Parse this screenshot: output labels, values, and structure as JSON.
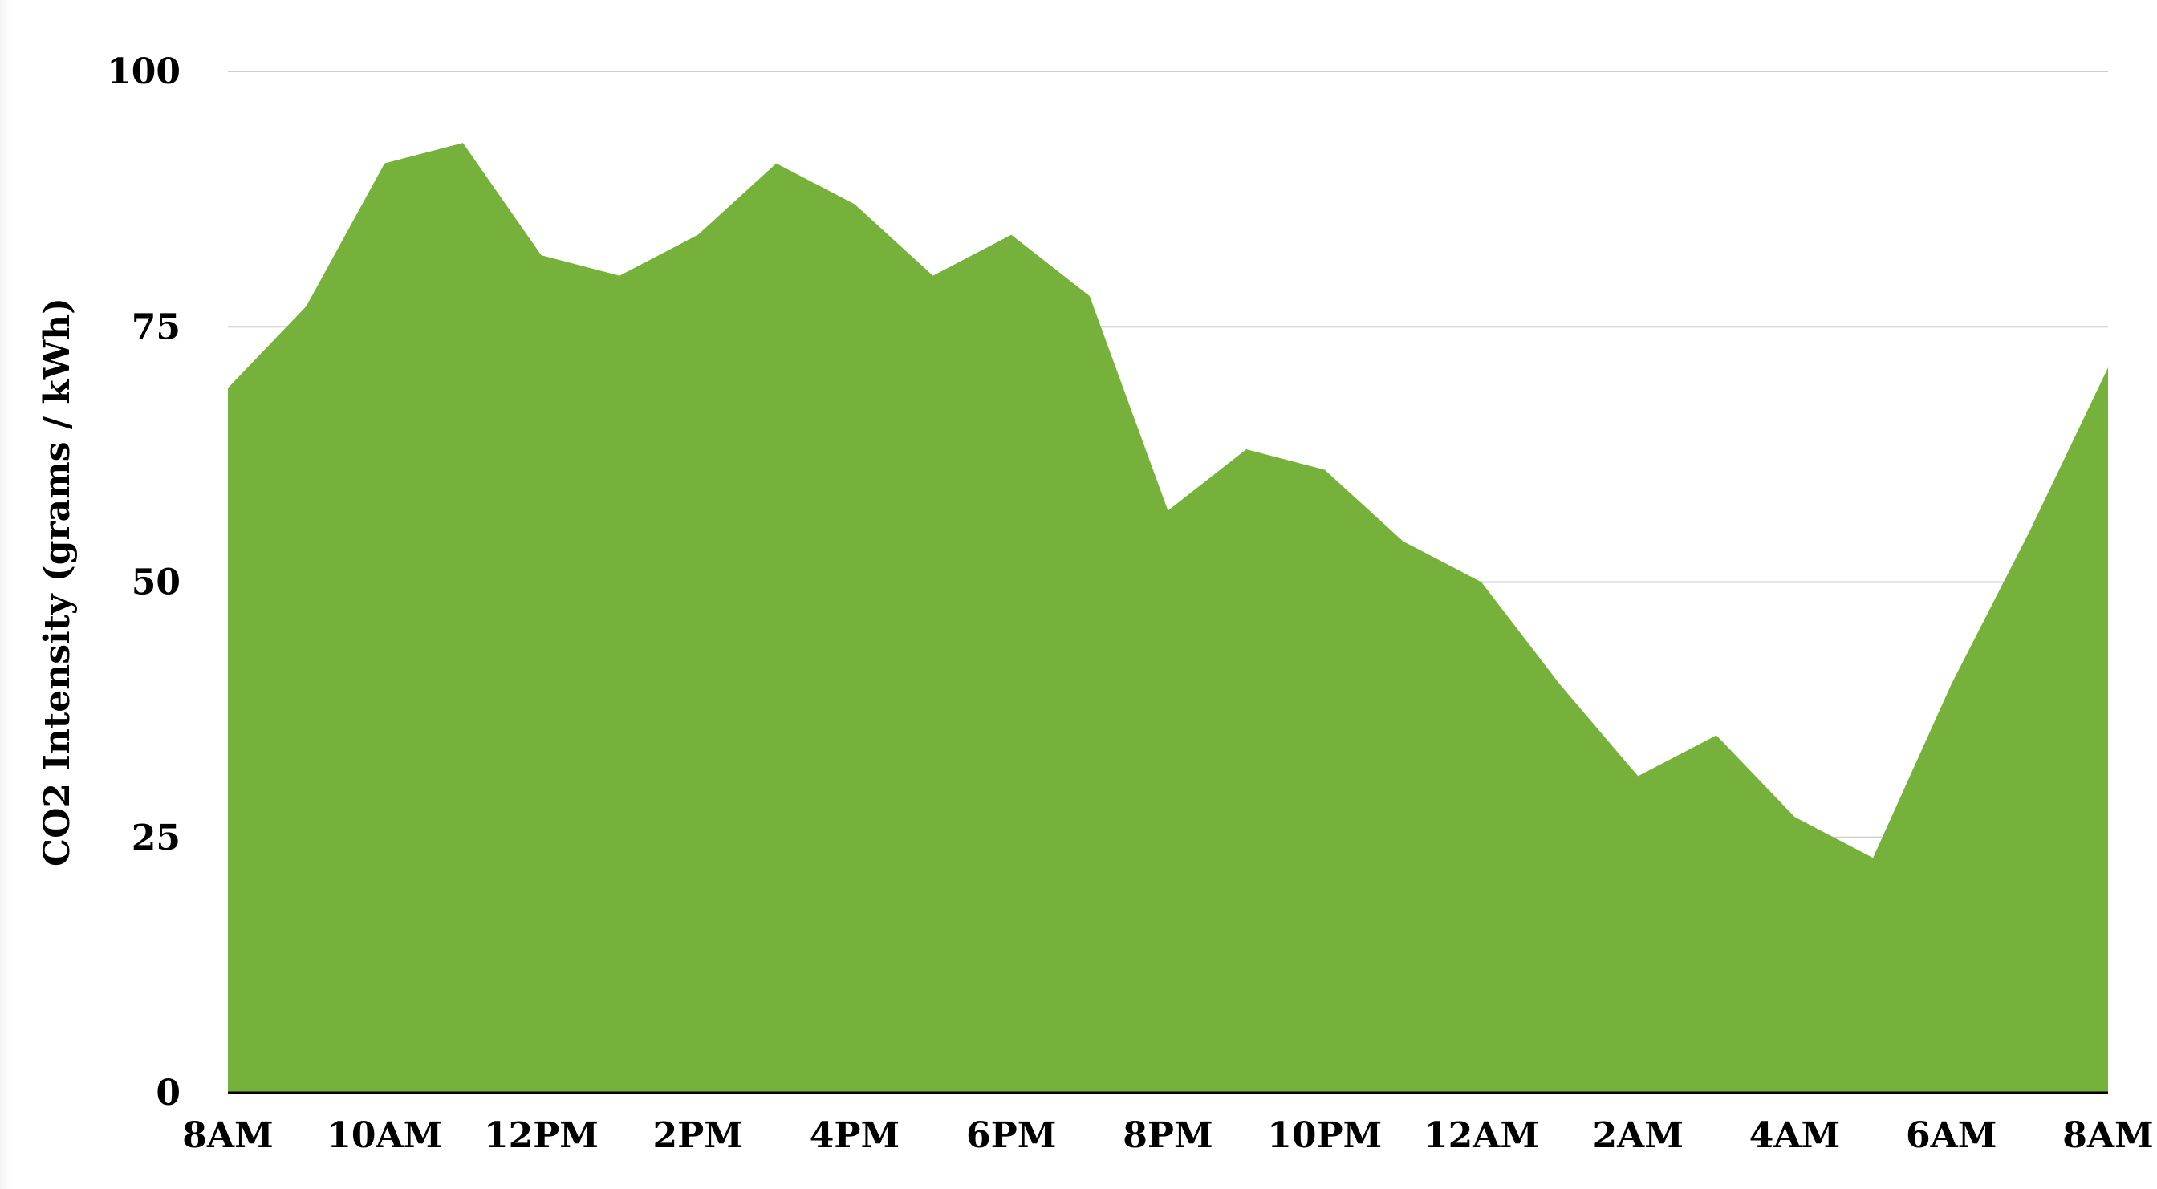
{
  "chart_data": {
    "type": "area",
    "title": "",
    "xlabel": "",
    "ylabel": "CO2 Intensity (grams / kWh)",
    "ylim": [
      0,
      100
    ],
    "yticks": [
      "0",
      "25",
      "50",
      "75",
      "100"
    ],
    "x_tick_labels": [
      "8AM",
      "10AM",
      "12PM",
      "2PM",
      "4PM",
      "6PM",
      "8PM",
      "10PM",
      "12AM",
      "2AM",
      "4AM",
      "6AM",
      "8AM"
    ],
    "x": [
      "8AM",
      "9AM",
      "10AM",
      "11AM",
      "12PM",
      "1PM",
      "2PM",
      "3PM",
      "4PM",
      "5PM",
      "6PM",
      "7PM",
      "8PM",
      "9PM",
      "10PM",
      "11PM",
      "12AM",
      "1AM",
      "2AM",
      "3AM",
      "4AM",
      "5AM",
      "6AM",
      "7AM",
      "8AM"
    ],
    "values": [
      69,
      77,
      91,
      93,
      82,
      80,
      84,
      91,
      87,
      80,
      84,
      78,
      57,
      63,
      61,
      54,
      50,
      40,
      31,
      35,
      27,
      23,
      40,
      55,
      71
    ],
    "grid": true,
    "legend": "none",
    "colors": {
      "fill": "#76b23b",
      "grid": "#cccccc",
      "axis": "#000000"
    }
  }
}
